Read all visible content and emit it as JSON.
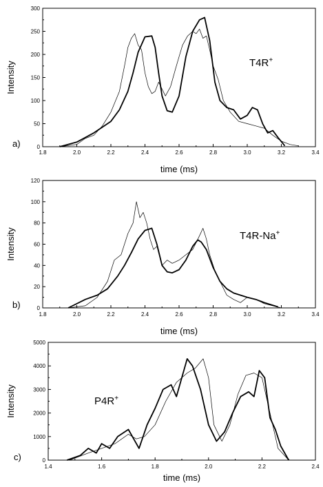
{
  "chart_data": [
    {
      "type": "line",
      "panel_label": "a)",
      "annotation": "T4R",
      "annotation_sup": "+",
      "xlabel": "time (ms)",
      "ylabel": "Intensity",
      "xlim": [
        1.8,
        3.4
      ],
      "ylim": [
        0,
        300
      ],
      "xticks": [
        "1.8",
        "2.0",
        "2.2",
        "2.4",
        "2.6",
        "2.8",
        "3.0",
        "3.2",
        "3.4"
      ],
      "yticks": [
        "0",
        "50",
        "100",
        "150",
        "200",
        "250",
        "300"
      ],
      "series": [
        {
          "style": "thin",
          "x": [
            1.9,
            2.0,
            2.05,
            2.1,
            2.15,
            2.2,
            2.25,
            2.28,
            2.3,
            2.32,
            2.34,
            2.36,
            2.38,
            2.4,
            2.42,
            2.44,
            2.46,
            2.48,
            2.5,
            2.52,
            2.55,
            2.58,
            2.6,
            2.62,
            2.65,
            2.68,
            2.7,
            2.72,
            2.74,
            2.76,
            2.78,
            2.8,
            2.83,
            2.86,
            2.9,
            2.95,
            3.0,
            3.05,
            3.1,
            3.15,
            3.2,
            3.25,
            3.3
          ],
          "y": [
            0,
            5,
            18,
            25,
            45,
            75,
            120,
            175,
            215,
            235,
            245,
            220,
            210,
            160,
            130,
            115,
            120,
            140,
            125,
            110,
            130,
            170,
            195,
            220,
            240,
            250,
            245,
            255,
            235,
            240,
            210,
            175,
            145,
            100,
            75,
            55,
            50,
            45,
            40,
            25,
            12,
            5,
            2
          ]
        },
        {
          "style": "thick",
          "x": [
            1.9,
            2.0,
            2.1,
            2.2,
            2.25,
            2.3,
            2.33,
            2.36,
            2.4,
            2.44,
            2.46,
            2.48,
            2.5,
            2.53,
            2.56,
            2.6,
            2.64,
            2.68,
            2.72,
            2.75,
            2.78,
            2.81,
            2.84,
            2.88,
            2.92,
            2.96,
            3.0,
            3.03,
            3.06,
            3.09,
            3.12,
            3.15,
            3.18,
            3.22
          ],
          "y": [
            0,
            10,
            30,
            55,
            80,
            120,
            160,
            205,
            238,
            240,
            215,
            160,
            110,
            78,
            75,
            110,
            195,
            250,
            275,
            280,
            230,
            140,
            100,
            85,
            80,
            60,
            68,
            85,
            80,
            50,
            30,
            35,
            20,
            2
          ]
        }
      ]
    },
    {
      "type": "line",
      "panel_label": "b)",
      "annotation": "T4R-Na",
      "annotation_sup": "+",
      "xlabel": "time (ms)",
      "ylabel": "Intensity",
      "xlim": [
        1.8,
        3.4
      ],
      "ylim": [
        0,
        120
      ],
      "xticks": [
        "1.8",
        "2.0",
        "2.2",
        "2.4",
        "2.6",
        "2.8",
        "3.0",
        "3.2",
        "3.4"
      ],
      "yticks": [
        "0",
        "20",
        "40",
        "60",
        "80",
        "100",
        "120"
      ],
      "series": [
        {
          "style": "thin",
          "x": [
            1.95,
            2.05,
            2.12,
            2.18,
            2.22,
            2.26,
            2.3,
            2.33,
            2.35,
            2.37,
            2.39,
            2.41,
            2.43,
            2.45,
            2.47,
            2.5,
            2.53,
            2.56,
            2.6,
            2.64,
            2.68,
            2.72,
            2.74,
            2.76,
            2.78,
            2.81,
            2.84,
            2.88,
            2.92,
            2.96,
            3.0,
            3.05,
            3.1,
            3.15,
            3.2
          ],
          "y": [
            0,
            2,
            10,
            25,
            45,
            50,
            70,
            80,
            100,
            85,
            90,
            80,
            65,
            55,
            58,
            40,
            45,
            42,
            45,
            50,
            55,
            68,
            75,
            65,
            50,
            35,
            25,
            12,
            8,
            5,
            10,
            8,
            4,
            2,
            0
          ]
        },
        {
          "style": "thick",
          "x": [
            1.95,
            2.05,
            2.12,
            2.18,
            2.24,
            2.28,
            2.32,
            2.36,
            2.4,
            2.44,
            2.47,
            2.5,
            2.53,
            2.56,
            2.6,
            2.64,
            2.68,
            2.71,
            2.73,
            2.76,
            2.8,
            2.84,
            2.88,
            2.92,
            2.96,
            3.0,
            3.05,
            3.1,
            3.18
          ],
          "y": [
            0,
            8,
            12,
            18,
            30,
            40,
            52,
            65,
            73,
            75,
            60,
            40,
            34,
            33,
            36,
            45,
            58,
            64,
            62,
            55,
            38,
            25,
            18,
            14,
            12,
            10,
            8,
            5,
            1
          ]
        }
      ]
    },
    {
      "type": "line",
      "panel_label": "c)",
      "annotation": "P4R",
      "annotation_sup": "+",
      "xlabel": "time (ms)",
      "ylabel": "Intensity",
      "xlim": [
        1.4,
        2.4
      ],
      "ylim": [
        0,
        5000
      ],
      "xticks": [
        "1.4",
        "1.6",
        "1.8",
        "2.0",
        "2.2",
        "2.4"
      ],
      "yticks": [
        "0",
        "1000",
        "2000",
        "3000",
        "4000",
        "5000"
      ],
      "series": [
        {
          "style": "thin",
          "x": [
            1.48,
            1.55,
            1.6,
            1.65,
            1.7,
            1.73,
            1.76,
            1.8,
            1.84,
            1.88,
            1.92,
            1.95,
            1.98,
            2.0,
            2.02,
            2.05,
            2.08,
            2.11,
            2.14,
            2.17,
            2.2,
            2.23,
            2.26,
            2.3
          ],
          "y": [
            0,
            300,
            500,
            700,
            1100,
            900,
            1000,
            1500,
            2500,
            3300,
            3700,
            3900,
            4300,
            3500,
            1500,
            800,
            1500,
            2800,
            3600,
            3700,
            3500,
            2000,
            500,
            0
          ]
        },
        {
          "style": "thick",
          "x": [
            1.47,
            1.52,
            1.55,
            1.58,
            1.6,
            1.63,
            1.66,
            1.7,
            1.74,
            1.77,
            1.8,
            1.83,
            1.86,
            1.88,
            1.9,
            1.92,
            1.94,
            1.97,
            2.0,
            2.03,
            2.06,
            2.09,
            2.12,
            2.15,
            2.17,
            2.19,
            2.21,
            2.23,
            2.25,
            2.27,
            2.3
          ],
          "y": [
            0,
            200,
            500,
            300,
            700,
            500,
            1000,
            1300,
            500,
            1500,
            2200,
            3000,
            3200,
            2700,
            3500,
            4300,
            4000,
            3000,
            1500,
            800,
            1200,
            2000,
            2700,
            2900,
            2700,
            3800,
            3500,
            1800,
            1300,
            600,
            0
          ]
        }
      ]
    }
  ]
}
